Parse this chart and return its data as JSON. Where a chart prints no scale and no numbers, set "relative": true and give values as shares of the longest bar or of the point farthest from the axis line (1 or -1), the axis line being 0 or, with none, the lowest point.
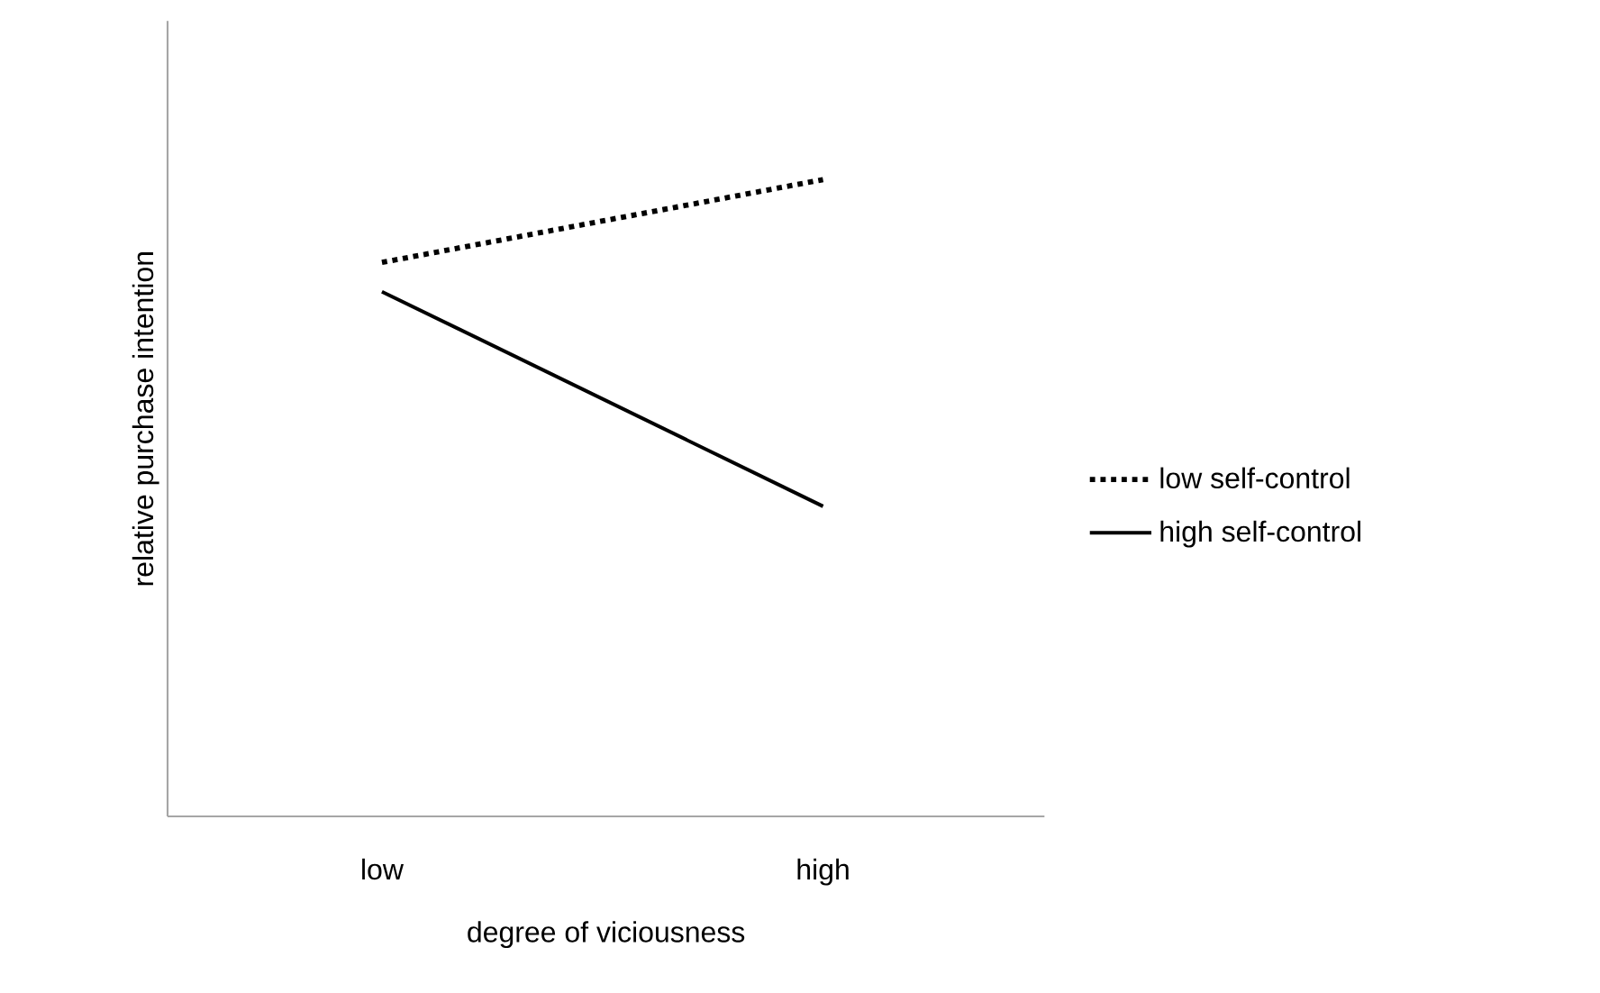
{
  "chart_data": {
    "type": "line",
    "relative": true,
    "xlabel": "degree of viciousness",
    "ylabel": "relative purchase intention",
    "categories": [
      "low",
      "high"
    ],
    "series": [
      {
        "name": "low self-control",
        "color": "#000000",
        "line_style": "dotted",
        "values": [
          0.87,
          1
        ]
      },
      {
        "name": "high self-control",
        "color": "#000000",
        "line_style": "solid",
        "values": [
          0.824,
          0.487
        ]
      }
    ],
    "legend": "right",
    "grid": false
  }
}
